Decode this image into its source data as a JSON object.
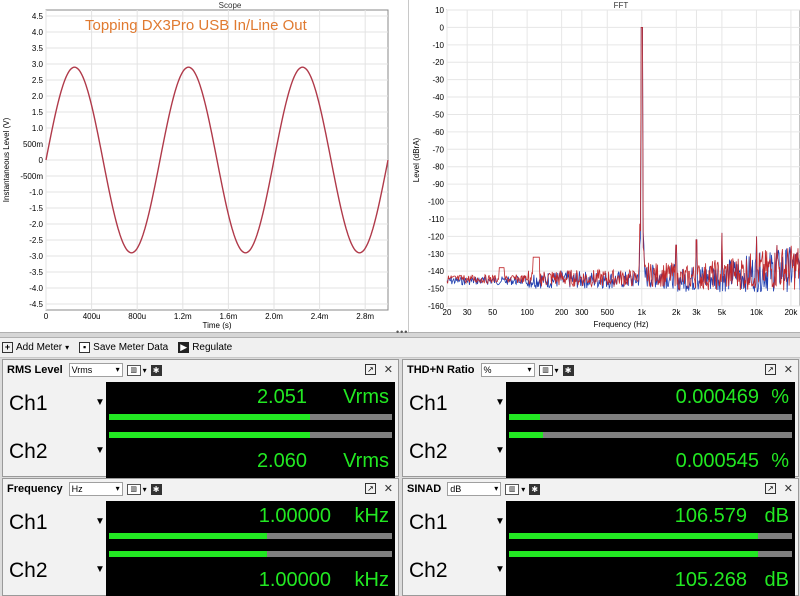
{
  "scope": {
    "window_title": "Scope",
    "annotation": "Topping DX3Pro USB In/Line Out",
    "ylabel": "Instantaneous Level (V)",
    "xlabel": "Time (s)",
    "y_ticks": [
      "4.5",
      "4.0",
      "3.5",
      "3.0",
      "2.5",
      "2.0",
      "1.5",
      "1.0",
      "500m",
      "0",
      "-500m",
      "-1.0",
      "-1.5",
      "-2.0",
      "-2.5",
      "-3.0",
      "-3.5",
      "-4.0",
      "-4.5"
    ],
    "x_ticks": [
      "0",
      "400u",
      "800u",
      "1.2m",
      "1.6m",
      "2.0m",
      "2.4m",
      "2.8m"
    ],
    "trace_color": "#b03a4a"
  },
  "fft": {
    "window_title": "FFT",
    "ylabel": "Level (dBrA)",
    "xlabel": "Frequency (Hz)",
    "y_ticks": [
      "10",
      "0",
      "-10",
      "-20",
      "-30",
      "-40",
      "-50",
      "-60",
      "-70",
      "-80",
      "-90",
      "-100",
      "-110",
      "-120",
      "-130",
      "-140",
      "-150",
      "-160"
    ],
    "x_ticks": [
      "20",
      "30",
      "50",
      "100",
      "200",
      "300",
      "500",
      "1k",
      "2k",
      "3k",
      "5k",
      "10k",
      "20k"
    ],
    "ch1_color": "#1f3fb0",
    "ch2_color": "#c0282c"
  },
  "toolbar": {
    "add_meter": "Add Meter",
    "save_meter_data": "Save Meter Data",
    "regulate": "Regulate"
  },
  "meters": {
    "rms": {
      "title": "RMS Level",
      "unit_select": "Vrms",
      "ch1_label": "Ch1",
      "ch1_value": "2.051",
      "ch1_unit": "Vrms",
      "ch1_bar": 0.71,
      "ch2_label": "Ch2",
      "ch2_value": "2.060",
      "ch2_unit": "Vrms",
      "ch2_bar": 0.71
    },
    "thdn": {
      "title": "THD+N Ratio",
      "unit_select": "%",
      "ch1_label": "Ch1",
      "ch1_value": "0.000469",
      "ch1_unit": "%",
      "ch1_bar": 0.11,
      "ch2_label": "Ch2",
      "ch2_value": "0.000545",
      "ch2_unit": "%",
      "ch2_bar": 0.12
    },
    "freq": {
      "title": "Frequency",
      "unit_select": "Hz",
      "ch1_label": "Ch1",
      "ch1_value": "1.00000",
      "ch1_unit": "kHz",
      "ch1_bar": 0.56,
      "ch2_label": "Ch2",
      "ch2_value": "1.00000",
      "ch2_unit": "kHz",
      "ch2_bar": 0.56
    },
    "sinad": {
      "title": "SINAD",
      "unit_select": "dB",
      "ch1_label": "Ch1",
      "ch1_value": "106.579",
      "ch1_unit": "dB",
      "ch1_bar": 0.88,
      "ch2_label": "Ch2",
      "ch2_value": "105.268",
      "ch2_unit": "dB",
      "ch2_bar": 0.88
    }
  }
}
